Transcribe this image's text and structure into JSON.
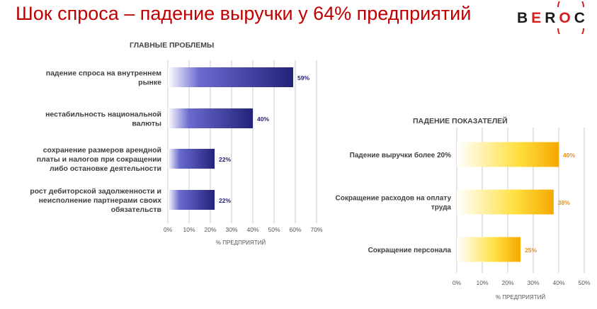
{
  "title": "Шок спроса – падение выручки у 64% предприятий",
  "logo": {
    "text": "BEROC",
    "colors": {
      "dark": "#1a1a1a",
      "accent": "#d32020"
    }
  },
  "chart_data": [
    {
      "type": "bar",
      "orientation": "horizontal",
      "title": "ГЛАВНЫЕ  ПРОБЛЕМЫ",
      "categories": [
        [
          "падение спроса на внутреннем",
          "рынке"
        ],
        [
          "нестабильность национальной",
          "валюты"
        ],
        [
          "сохранение размеров арендной",
          "платы и налогов при сокращении",
          "либо остановке деятельности"
        ],
        [
          "рост дебиторской задолженности и",
          "неисполнение партнерами своих",
          "обязательств"
        ]
      ],
      "values": [
        59,
        40,
        22,
        22
      ],
      "data_labels": [
        "59%",
        "40%",
        "22%",
        "22%"
      ],
      "xlabel": "% ПРЕДПРИЯТИЙ",
      "xlim": [
        0,
        70
      ],
      "ticks": [
        "0%",
        "10%",
        "20%",
        "30%",
        "40%",
        "50%",
        "60%",
        "70%"
      ],
      "grid": true,
      "colors": {
        "start": "#ffffff",
        "mid": "#6a6ad0",
        "end": "#23237a",
        "label": "#1e1e6e"
      }
    },
    {
      "type": "bar",
      "orientation": "horizontal",
      "title": "ПАДЕНИЕ  ПОКАЗАТЕЛЕЙ",
      "categories": [
        [
          "Падение выручки более 20%"
        ],
        [
          "Сокращение расходов на оплату",
          "труда"
        ],
        [
          "Сокращение персонала"
        ]
      ],
      "values": [
        40,
        38,
        25
      ],
      "data_labels": [
        "40%",
        "38%",
        "25%"
      ],
      "xlabel": "% ПРЕДПРИЯТИЙ",
      "xlim": [
        0,
        50
      ],
      "ticks": [
        "0%",
        "10%",
        "20%",
        "30%",
        "40%",
        "50%"
      ],
      "grid": true,
      "colors": {
        "start": "#ffffff",
        "mid": "#ffe040",
        "end": "#f5a800",
        "label": "#e8901a"
      }
    }
  ]
}
